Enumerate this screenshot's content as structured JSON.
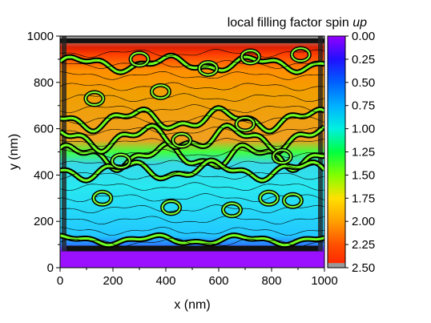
{
  "chart_data": {
    "type": "heatmap",
    "title_main": "local filling factor spin ",
    "title_italic": "up",
    "xlabel": "x (nm)",
    "ylabel": "y (nm)",
    "xlim": [
      0,
      1000
    ],
    "ylim": [
      0,
      1000
    ],
    "x_ticks": [
      "0",
      "200",
      "400",
      "600",
      "800",
      "1000"
    ],
    "y_ticks": [
      "0",
      "200",
      "400",
      "600",
      "800",
      "1000"
    ],
    "colorbar": {
      "range": [
        0,
        2.5
      ],
      "tick_labels": [
        "0.00",
        "0.25",
        "0.50",
        "0.75",
        "1.00",
        "1.25",
        "1.50",
        "1.75",
        "2.00",
        "2.25",
        "2.50"
      ],
      "colors": [
        "#9400ff",
        "#5a00ff",
        "#0020ff",
        "#0070ff",
        "#00b8ff",
        "#00f0e0",
        "#00ff00",
        "#b8ff00",
        "#ffe000",
        "#ff9000",
        "#ff2000",
        "#999999"
      ]
    },
    "regions": [
      {
        "name": "edge-bottom",
        "y_range": [
          0,
          80
        ],
        "value": 0.1
      },
      {
        "name": "plateau-low",
        "y_range": [
          100,
          460
        ],
        "value": 1.1
      },
      {
        "name": "plateau-high",
        "y_range": [
          560,
          930
        ],
        "value": 2.0
      },
      {
        "name": "edge-top",
        "y_range": [
          960,
          1000
        ],
        "value": 2.5
      }
    ]
  }
}
